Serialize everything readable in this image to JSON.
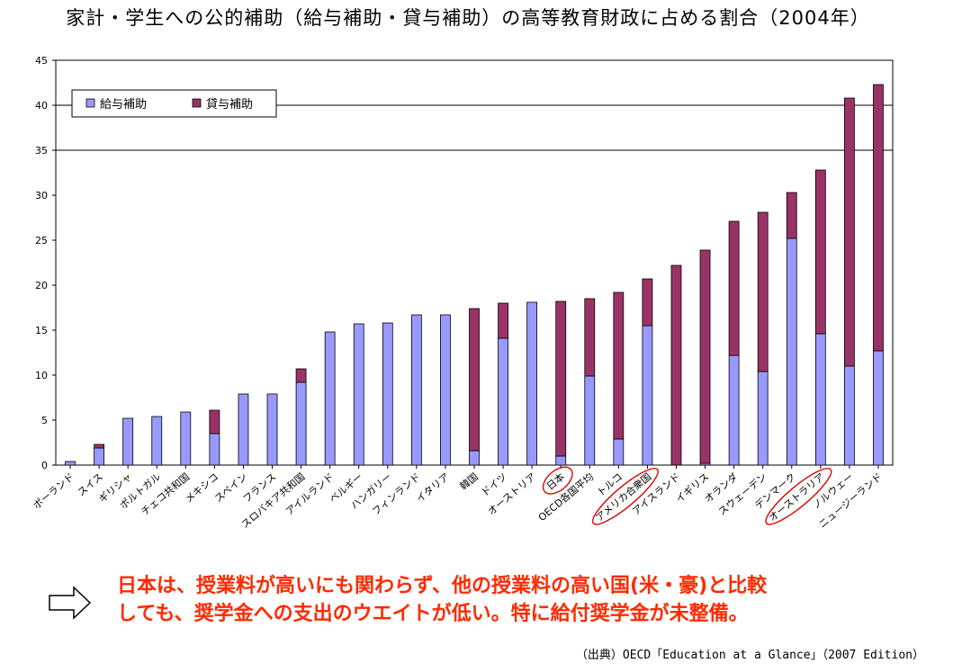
{
  "chart_data": {
    "type": "bar",
    "title": "家計・学生への公的補助（給与補助・貸与補助）の高等教育財政に占める割合（2004年）",
    "ylim": [
      0,
      45
    ],
    "yticks": [
      0,
      5,
      10,
      15,
      20,
      25,
      30,
      35,
      40,
      45
    ],
    "stacked": true,
    "legend_position": "top-left",
    "categories": [
      "ポーランド",
      "スイス",
      "ギリシャ",
      "ポルトガル",
      "チェコ共和国",
      "メキシコ",
      "スペイン",
      "フランス",
      "スロバキア共和国",
      "アイルランド",
      "ベルギー",
      "ハンガリー",
      "フィンランド",
      "イタリア",
      "韓国",
      "ドイツ",
      "オーストリア",
      "日本",
      "OECD各国平均",
      "トルコ",
      "アメリカ合衆国",
      "アイスランド",
      "イギリス",
      "オランダ",
      "スウェーデン",
      "デンマーク",
      "オーストラリア",
      "ノルウェー",
      "ニュージーランド"
    ],
    "series": [
      {
        "name": "給与補助",
        "color": "#9999ff",
        "values": [
          0.4,
          1.9,
          5.2,
          5.4,
          5.9,
          3.5,
          7.9,
          7.9,
          9.2,
          14.8,
          15.7,
          15.8,
          16.7,
          16.7,
          1.6,
          14.1,
          18.1,
          1.0,
          9.9,
          2.9,
          15.5,
          0.0,
          0.2,
          12.2,
          10.4,
          25.2,
          14.6,
          11.0,
          12.7
        ]
      },
      {
        "name": "貸与補助",
        "color": "#993366",
        "values": [
          0.0,
          0.4,
          0.0,
          0.0,
          0.0,
          2.6,
          0.0,
          0.0,
          1.5,
          0.0,
          0.0,
          0.0,
          0.0,
          0.0,
          15.8,
          3.9,
          0.0,
          17.2,
          8.6,
          16.3,
          5.2,
          22.2,
          23.7,
          14.9,
          17.7,
          5.1,
          18.2,
          29.8,
          29.6
        ]
      }
    ],
    "highlighted": [
      "日本",
      "アメリカ合衆国",
      "オーストラリア"
    ],
    "grid_lines": [
      35,
      40
    ]
  },
  "note": {
    "line1": "日本は、授業料が高いにも関わらず、他の授業料の高い国(米・豪)と比較",
    "line2": "しても、奨学金への支出のウエイトが低い。特に給付奨学金が未整備。"
  },
  "source": "（出典）OECD「Education at a Glance」（2007 Edition）",
  "colors": {
    "note_text": "#ff2a00",
    "highlight_ring": "#dd0000"
  }
}
